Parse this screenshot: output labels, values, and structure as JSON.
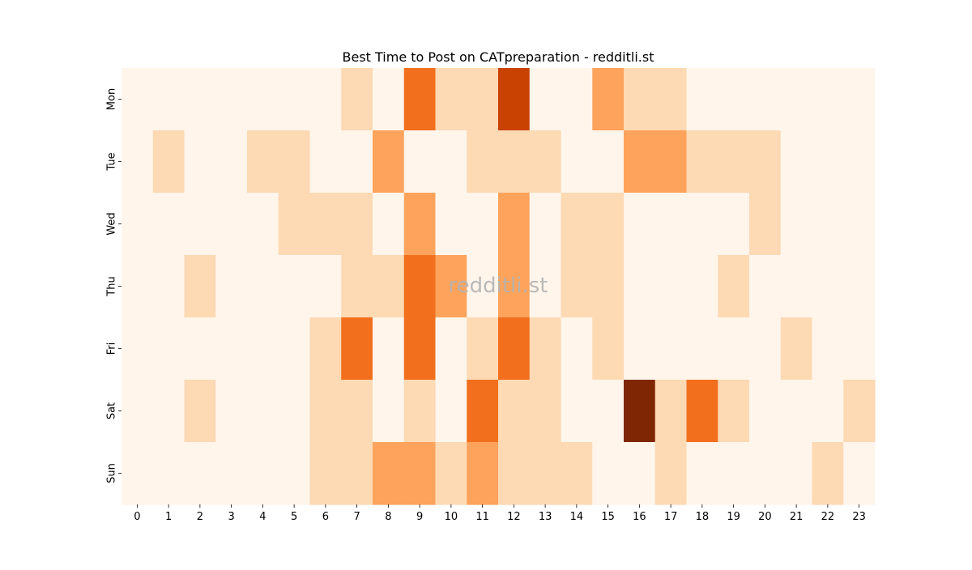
{
  "chart_data": {
    "type": "heatmap",
    "title": "Best Time to Post on CATpreparation - redditli.st",
    "watermark": "redditli.st",
    "xlabel": "",
    "ylabel": "",
    "x_categories": [
      "0",
      "1",
      "2",
      "3",
      "4",
      "5",
      "6",
      "7",
      "8",
      "9",
      "10",
      "11",
      "12",
      "13",
      "14",
      "15",
      "16",
      "17",
      "18",
      "19",
      "20",
      "21",
      "22",
      "23"
    ],
    "y_categories": [
      "Mon",
      "Tue",
      "Wed",
      "Thu",
      "Fri",
      "Sat",
      "Sun"
    ],
    "colormap": "Oranges",
    "value_range": [
      0,
      5
    ],
    "values": [
      [
        0,
        0,
        0,
        0,
        0,
        0,
        0,
        1,
        0,
        3,
        1,
        1,
        4,
        0,
        0,
        2,
        1,
        1,
        0,
        0,
        0,
        0,
        0,
        0
      ],
      [
        0,
        1,
        0,
        0,
        1,
        1,
        0,
        0,
        2,
        0,
        0,
        1,
        1,
        1,
        0,
        0,
        2,
        2,
        1,
        1,
        1,
        0,
        0,
        0
      ],
      [
        0,
        0,
        0,
        0,
        0,
        1,
        1,
        1,
        0,
        2,
        0,
        0,
        2,
        0,
        1,
        1,
        0,
        0,
        0,
        0,
        1,
        0,
        0,
        0
      ],
      [
        0,
        0,
        1,
        0,
        0,
        0,
        0,
        1,
        1,
        3,
        2,
        0,
        2,
        0,
        1,
        1,
        0,
        0,
        0,
        1,
        0,
        0,
        0,
        0
      ],
      [
        0,
        0,
        0,
        0,
        0,
        0,
        1,
        3,
        0,
        3,
        0,
        1,
        3,
        1,
        0,
        1,
        0,
        0,
        0,
        0,
        0,
        1,
        0,
        0
      ],
      [
        0,
        0,
        1,
        0,
        0,
        0,
        1,
        1,
        0,
        1,
        0,
        3,
        1,
        1,
        0,
        0,
        5,
        1,
        3,
        1,
        0,
        0,
        0,
        1
      ],
      [
        0,
        0,
        0,
        0,
        0,
        0,
        1,
        1,
        2,
        2,
        1,
        2,
        1,
        1,
        1,
        0,
        0,
        1,
        0,
        0,
        0,
        0,
        1,
        0
      ]
    ],
    "color_scale": {
      "0": "#fff5eb",
      "1": "#fdd9b4",
      "2": "#fda35c",
      "3": "#f16f1d",
      "4": "#c94202",
      "5": "#7f2704"
    }
  }
}
